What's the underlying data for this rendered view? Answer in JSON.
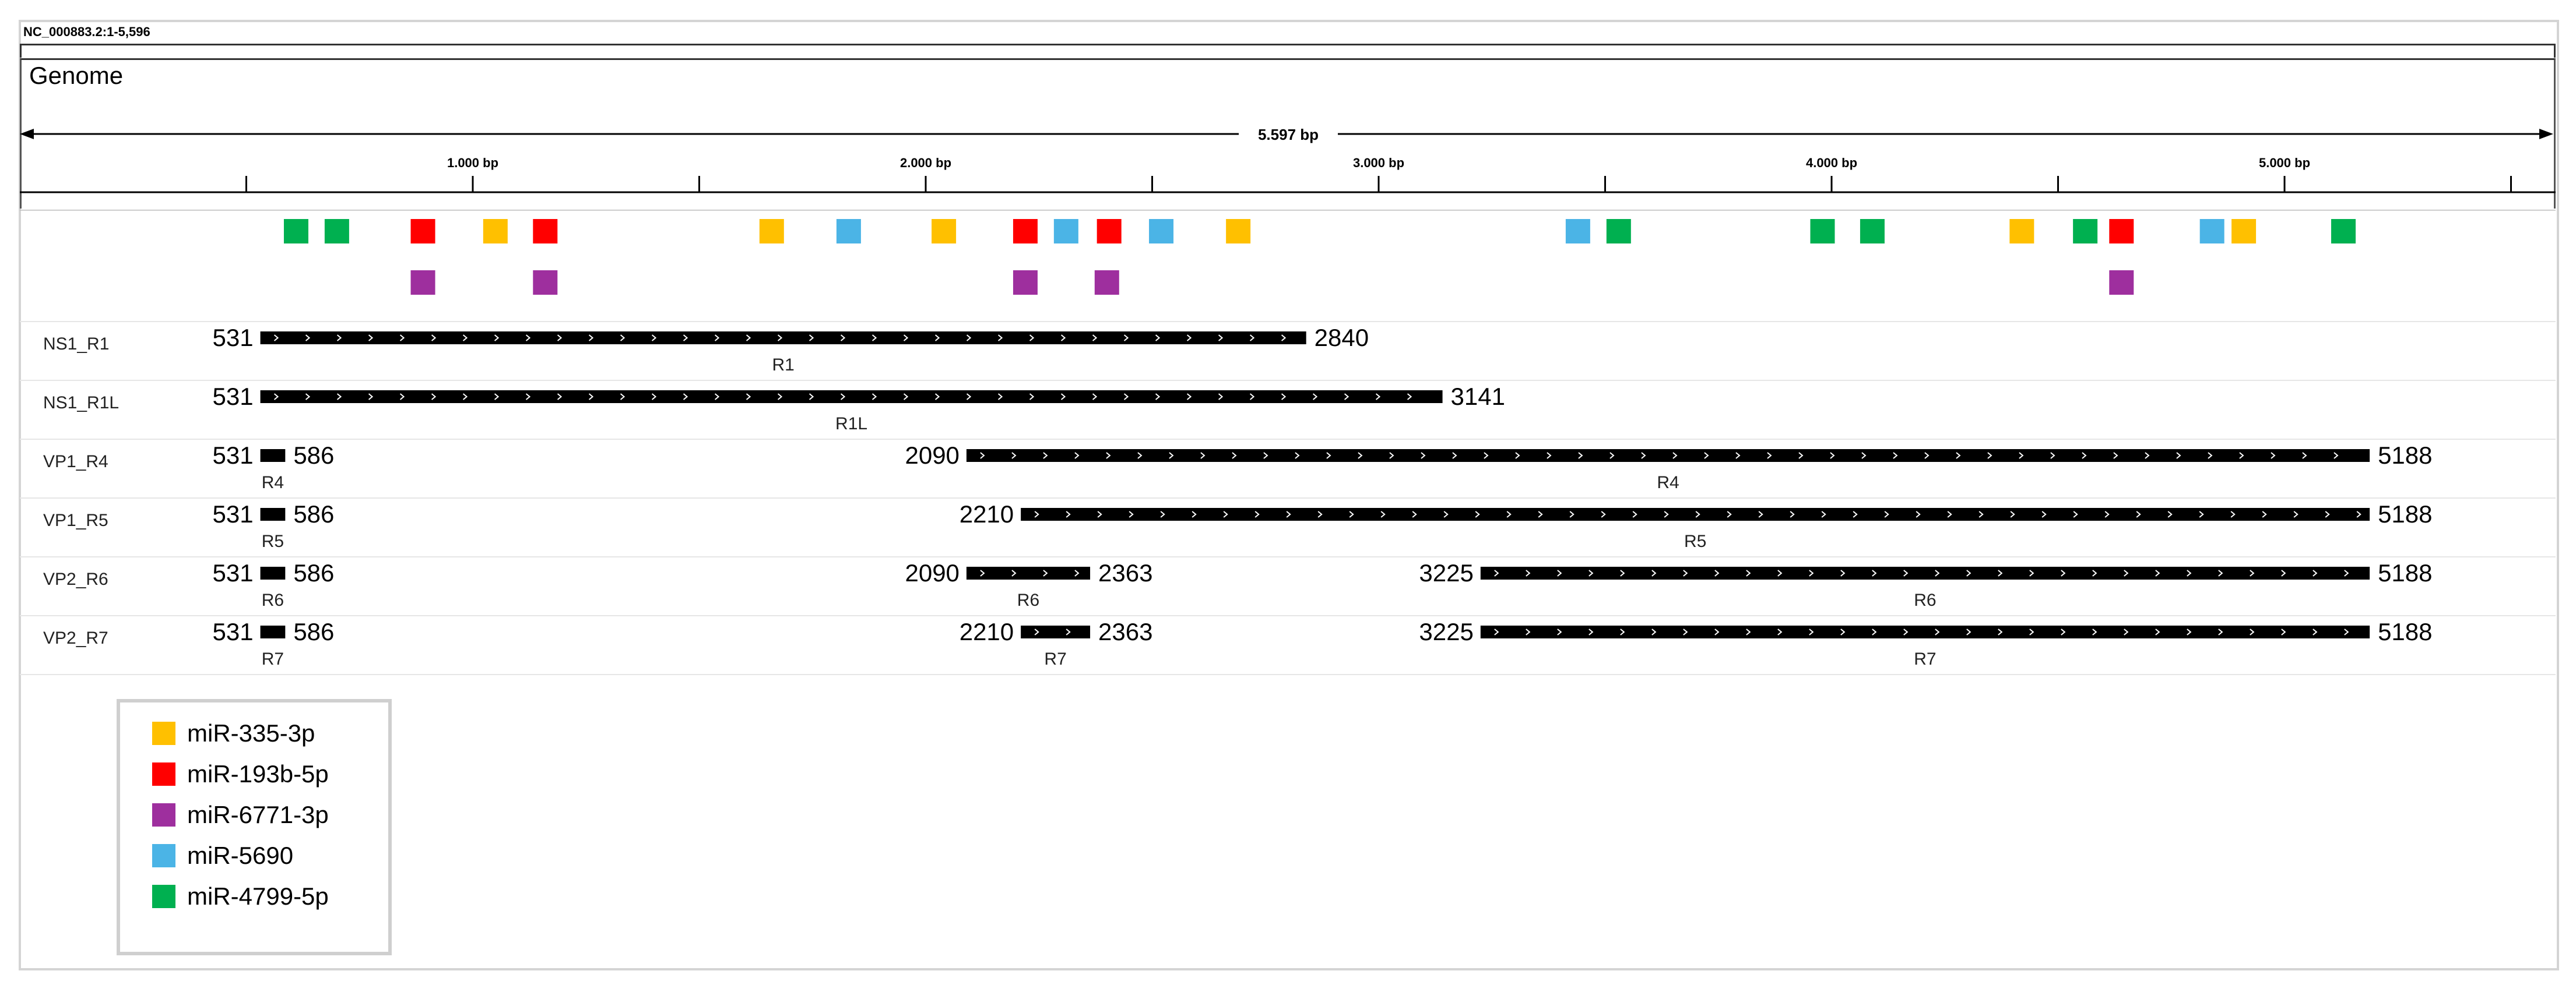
{
  "locus": "NC_000883.2:1-5,596",
  "genome_label": "Genome",
  "ruler": {
    "total_label": "5.597 bp",
    "ticks": [
      {
        "bp": 1000,
        "label": "1.000 bp"
      },
      {
        "bp": 2000,
        "label": "2.000 bp"
      },
      {
        "bp": 3000,
        "label": "3.000 bp"
      },
      {
        "bp": 4000,
        "label": "4.000 bp"
      },
      {
        "bp": 5000,
        "label": "5.000 bp"
      }
    ]
  },
  "colors": {
    "miR-335-3p": "#FFC000",
    "miR-193b-5p": "#FF0000",
    "miR-6771-3p": "#9E2F9E",
    "miR-5690": "#4BB4E6",
    "miR-4799-5p": "#00B050"
  },
  "mirna_sites": [
    {
      "bp": 610,
      "row": 1,
      "mirna": "miR-4799-5p"
    },
    {
      "bp": 700,
      "row": 1,
      "mirna": "miR-4799-5p"
    },
    {
      "bp": 890,
      "row": 1,
      "mirna": "miR-193b-5p"
    },
    {
      "bp": 1050,
      "row": 1,
      "mirna": "miR-335-3p"
    },
    {
      "bp": 1160,
      "row": 1,
      "mirna": "miR-193b-5p"
    },
    {
      "bp": 1660,
      "row": 1,
      "mirna": "miR-335-3p"
    },
    {
      "bp": 1830,
      "row": 1,
      "mirna": "miR-5690"
    },
    {
      "bp": 2040,
      "row": 1,
      "mirna": "miR-335-3p"
    },
    {
      "bp": 2220,
      "row": 1,
      "mirna": "miR-193b-5p"
    },
    {
      "bp": 2310,
      "row": 1,
      "mirna": "miR-5690"
    },
    {
      "bp": 2405,
      "row": 1,
      "mirna": "miR-193b-5p"
    },
    {
      "bp": 2520,
      "row": 1,
      "mirna": "miR-5690"
    },
    {
      "bp": 2690,
      "row": 1,
      "mirna": "miR-335-3p"
    },
    {
      "bp": 3440,
      "row": 1,
      "mirna": "miR-5690"
    },
    {
      "bp": 3530,
      "row": 1,
      "mirna": "miR-4799-5p"
    },
    {
      "bp": 3980,
      "row": 1,
      "mirna": "miR-4799-5p"
    },
    {
      "bp": 4090,
      "row": 1,
      "mirna": "miR-4799-5p"
    },
    {
      "bp": 4420,
      "row": 1,
      "mirna": "miR-335-3p"
    },
    {
      "bp": 4560,
      "row": 1,
      "mirna": "miR-4799-5p"
    },
    {
      "bp": 4640,
      "row": 1,
      "mirna": "miR-193b-5p"
    },
    {
      "bp": 4840,
      "row": 1,
      "mirna": "miR-5690"
    },
    {
      "bp": 4910,
      "row": 1,
      "mirna": "miR-335-3p"
    },
    {
      "bp": 5130,
      "row": 1,
      "mirna": "miR-4799-5p"
    },
    {
      "bp": 890,
      "row": 2,
      "mirna": "miR-6771-3p"
    },
    {
      "bp": 1160,
      "row": 2,
      "mirna": "miR-6771-3p"
    },
    {
      "bp": 2220,
      "row": 2,
      "mirna": "miR-6771-3p"
    },
    {
      "bp": 2400,
      "row": 2,
      "mirna": "miR-6771-3p"
    },
    {
      "bp": 4640,
      "row": 2,
      "mirna": "miR-6771-3p"
    }
  ],
  "tracks": [
    {
      "name": "NS1_R1",
      "segments": [
        {
          "start": 531,
          "end": 2840,
          "start_label": "531",
          "end_label": "2840",
          "label": "R1",
          "arrows": true
        }
      ]
    },
    {
      "name": "NS1_R1L",
      "segments": [
        {
          "start": 531,
          "end": 3141,
          "start_label": "531",
          "end_label": "3141",
          "label": "R1L",
          "arrows": true
        }
      ]
    },
    {
      "name": "VP1_R4",
      "segments": [
        {
          "start": 531,
          "end": 586,
          "start_label": "531",
          "end_label": "586",
          "label": "R4",
          "arrows": false
        },
        {
          "start": 2090,
          "end": 5188,
          "start_label": "2090",
          "end_label": "5188",
          "label": "R4",
          "arrows": true
        }
      ]
    },
    {
      "name": "VP1_R5",
      "segments": [
        {
          "start": 531,
          "end": 586,
          "start_label": "531",
          "end_label": "586",
          "label": "R5",
          "arrows": false
        },
        {
          "start": 2210,
          "end": 5188,
          "start_label": "2210",
          "end_label": "5188",
          "label": "R5",
          "arrows": true
        }
      ]
    },
    {
      "name": "VP2_R6",
      "segments": [
        {
          "start": 531,
          "end": 586,
          "start_label": "531",
          "end_label": "586",
          "label": "R6",
          "arrows": false
        },
        {
          "start": 2090,
          "end": 2363,
          "start_label": "2090",
          "end_label": "2363",
          "label": "R6",
          "arrows": true
        },
        {
          "start": 3225,
          "end": 5188,
          "start_label": "3225",
          "end_label": "5188",
          "label": "R6",
          "arrows": true
        }
      ]
    },
    {
      "name": "VP2_R7",
      "segments": [
        {
          "start": 531,
          "end": 586,
          "start_label": "531",
          "end_label": "586",
          "label": "R7",
          "arrows": false
        },
        {
          "start": 2210,
          "end": 2363,
          "start_label": "2210",
          "end_label": "2363",
          "label": "R7",
          "arrows": true
        },
        {
          "start": 3225,
          "end": 5188,
          "start_label": "3225",
          "end_label": "5188",
          "label": "R7",
          "arrows": true
        }
      ]
    }
  ],
  "legend": [
    {
      "label": "miR-335-3p",
      "color": "#FFC000"
    },
    {
      "label": "miR-193b-5p",
      "color": "#FF0000"
    },
    {
      "label": "miR-6771-3p",
      "color": "#9E2F9E"
    },
    {
      "label": "miR-5690",
      "color": "#4BB4E6"
    },
    {
      "label": "miR-4799-5p",
      "color": "#00B050"
    }
  ]
}
